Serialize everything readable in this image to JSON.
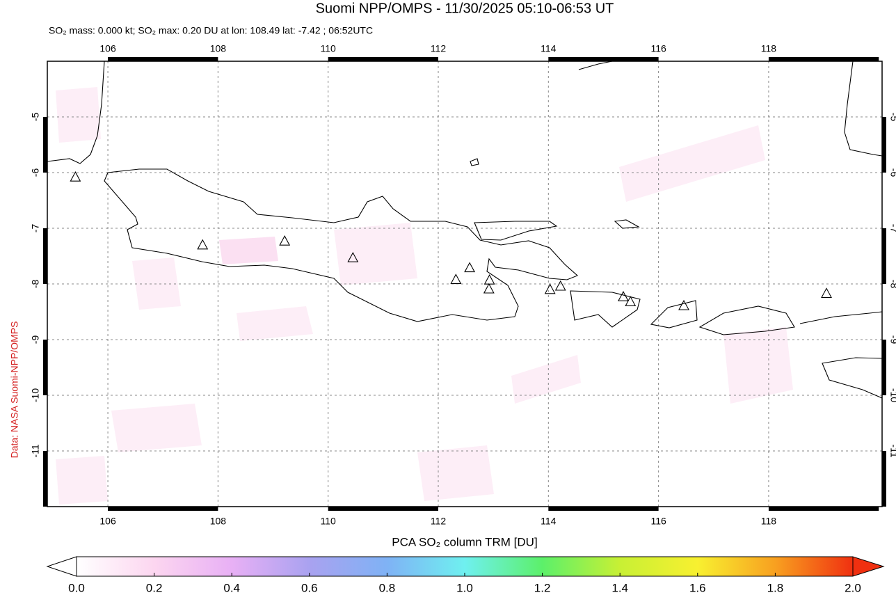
{
  "chart_data": {
    "type": "map",
    "title": "Suomi NPP/OMPS - 11/30/2025 05:10-06:53 UT",
    "subtitle": "SO₂ mass: 0.000 kt; SO₂ max: 0.20 DU at lon: 108.49 lat: -7.42 ; 06:52UTC",
    "credit": "Data: NASA Suomi-NPP/OMPS",
    "xlim": [
      104.9,
      120.06
    ],
    "ylim": [
      -12,
      -4
    ],
    "xticks": [
      106,
      108,
      110,
      112,
      114,
      116,
      118
    ],
    "yticks": [
      -5,
      -6,
      -7,
      -8,
      -9,
      -10,
      -11
    ],
    "grid": true,
    "volcanoes": [
      {
        "lon": 105.41,
        "lat": -6.09
      },
      {
        "lon": 107.72,
        "lat": -7.31
      },
      {
        "lon": 109.21,
        "lat": -7.24
      },
      {
        "lon": 110.45,
        "lat": -7.54
      },
      {
        "lon": 112.32,
        "lat": -7.93
      },
      {
        "lon": 112.57,
        "lat": -7.72
      },
      {
        "lon": 112.93,
        "lat": -7.94
      },
      {
        "lon": 112.92,
        "lat": -8.1
      },
      {
        "lon": 114.03,
        "lat": -8.11
      },
      {
        "lon": 114.22,
        "lat": -8.05
      },
      {
        "lon": 115.36,
        "lat": -8.24
      },
      {
        "lon": 115.49,
        "lat": -8.33
      },
      {
        "lon": 116.46,
        "lat": -8.4
      },
      {
        "lon": 119.05,
        "lat": -8.18
      }
    ],
    "colorbar": {
      "label": "PCA SO₂ column TRM [DU]",
      "lim": [
        0,
        2
      ],
      "ticks": [
        {
          "value": 0,
          "label": "0.0"
        },
        0.2,
        0.4,
        0.6,
        0.8,
        {
          "value": 1,
          "label": "1.0"
        },
        1.2,
        1.4,
        1.6,
        1.8,
        {
          "value": 2,
          "label": "2.0"
        }
      ],
      "colors": [
        "#ffffff",
        "#fcd6f0",
        "#e8b0f5",
        "#a9a2f0",
        "#7fb2f5",
        "#6ff0f0",
        "#5cf06a",
        "#c8f034",
        "#f8f030",
        "#f8a020",
        "#f03010"
      ]
    }
  }
}
